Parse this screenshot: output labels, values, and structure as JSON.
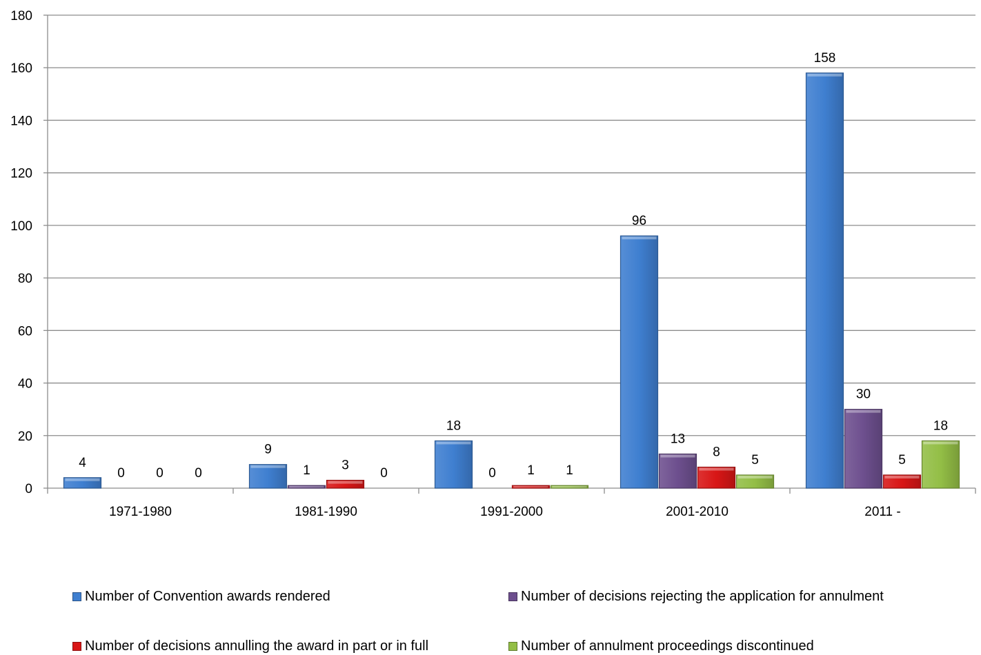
{
  "chart_data": {
    "type": "bar",
    "categories": [
      "1971-1980",
      "1981-1990",
      "1991-2000",
      "2001-2010",
      "2011 -"
    ],
    "series": [
      {
        "name": "Number of Convention awards rendered",
        "color": "#3f7fd0",
        "values": [
          4,
          9,
          18,
          96,
          158
        ]
      },
      {
        "name": "Number of decisions rejecting the application for annulment",
        "color": "#6d4f8e",
        "values": [
          0,
          1,
          0,
          13,
          30
        ]
      },
      {
        "name": "Number of decisions annulling the award in part or in full",
        "color": "#d81616",
        "values": [
          0,
          3,
          1,
          8,
          5
        ]
      },
      {
        "name": "Number of annulment proceedings discontinued",
        "color": "#93be46",
        "values": [
          0,
          0,
          1,
          5,
          18
        ]
      }
    ],
    "y_ticks": [
      "0",
      "20",
      "40",
      "60",
      "80",
      "100",
      "120",
      "140",
      "160",
      "180"
    ],
    "ylim": [
      0,
      180
    ],
    "title": "",
    "xlabel": "",
    "ylabel": "",
    "grid": true,
    "legend_position": "bottom"
  }
}
